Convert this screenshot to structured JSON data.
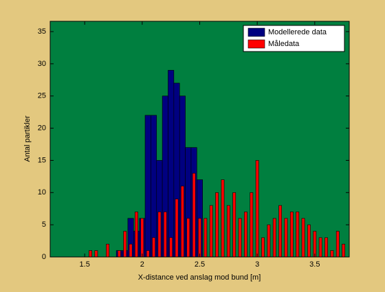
{
  "chart_data": {
    "type": "histogram",
    "xlabel": "X-distance ved anslag mod bund [m]",
    "ylabel": "Antal partikler",
    "xlim": [
      1.2,
      3.8
    ],
    "ylim": [
      0,
      36.6
    ],
    "xticks": [
      1.5,
      2,
      2.5,
      3,
      3.5
    ],
    "yticks": [
      0,
      5,
      10,
      15,
      20,
      25,
      30,
      35
    ],
    "background": "#007f3f",
    "legend": "upper right",
    "series": [
      {
        "name": "Modellerede data",
        "color": "#000080",
        "type": "histogram",
        "bins": [
          1.775,
          1.825,
          1.875,
          1.925,
          1.975,
          2.025,
          2.075,
          2.125,
          2.175,
          2.225,
          2.275,
          2.325,
          2.375,
          2.425,
          2.475,
          2.525
        ],
        "values": [
          1,
          1,
          6,
          4,
          6,
          22,
          22,
          15,
          25,
          29,
          27,
          25,
          17,
          17,
          12
        ]
      },
      {
        "name": "Måledata",
        "color": "#ff0000",
        "type": "bar",
        "x": [
          1.55,
          1.6,
          1.65,
          1.7,
          1.75,
          1.8,
          1.85,
          1.9,
          1.95,
          2.0,
          2.05,
          2.1,
          2.15,
          2.2,
          2.25,
          2.3,
          2.35,
          2.4,
          2.45,
          2.5,
          2.55,
          2.6,
          2.65,
          2.7,
          2.75,
          2.8,
          2.85,
          2.9,
          2.95,
          3.0,
          3.05,
          3.1,
          3.15,
          3.2,
          3.25,
          3.3,
          3.35,
          3.4,
          3.45,
          3.5,
          3.55,
          3.6,
          3.65,
          3.7,
          3.75
        ],
        "values": [
          1,
          1,
          0,
          2,
          0,
          1,
          4,
          2,
          7,
          6,
          1,
          3,
          7,
          7,
          3,
          9,
          11,
          6,
          13,
          6,
          6,
          8,
          10,
          12,
          8,
          10,
          6,
          7,
          10,
          15,
          3,
          5,
          6,
          8,
          6,
          7,
          7,
          6,
          5,
          4,
          3,
          3,
          1,
          4,
          2
        ]
      }
    ]
  }
}
